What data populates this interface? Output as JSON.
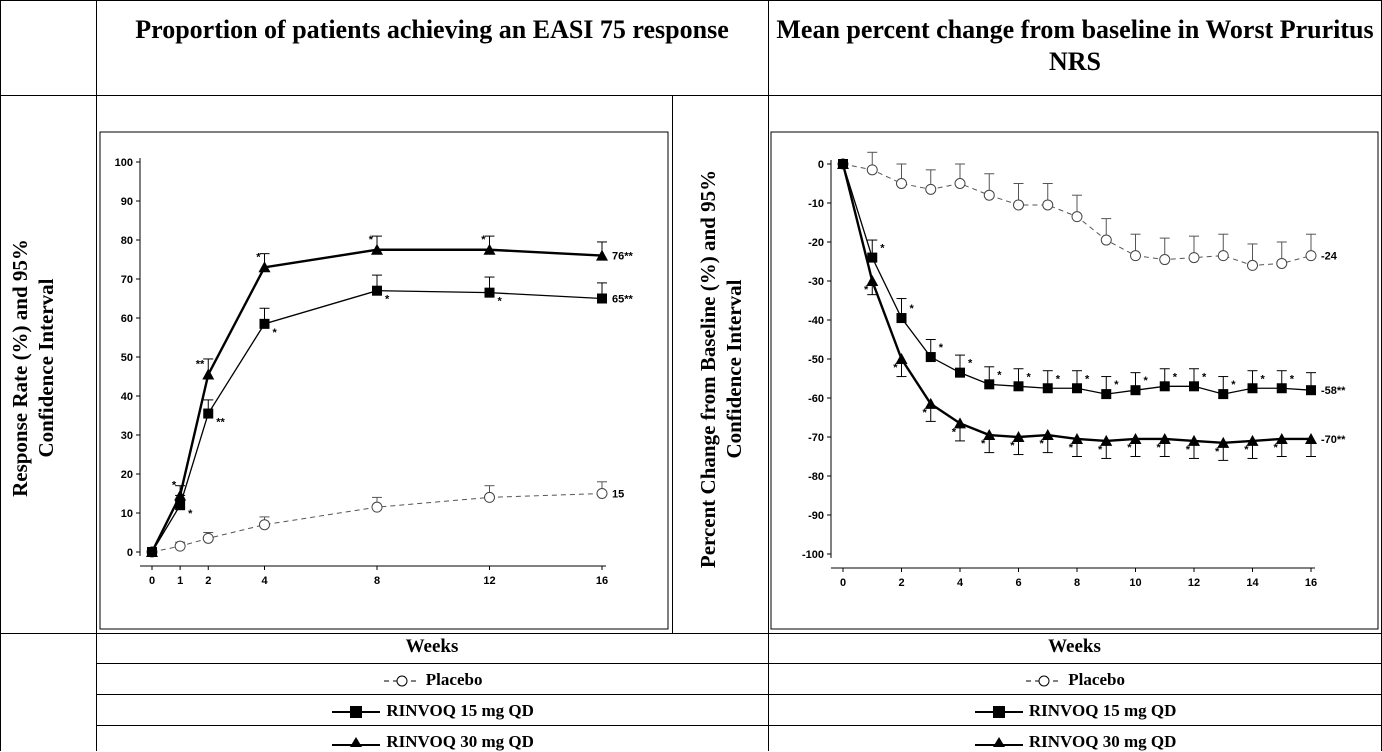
{
  "headers": {
    "left": "Proportion of patients achieving an EASI 75 response",
    "right": "Mean percent change from baseline in Worst Pruritus NRS"
  },
  "left_ylabel": "Response Rate (%) and 95% Confidence Interval",
  "right_ylabel": "Percent Change from Baseline (%) and 95% Confidence Interval",
  "footer": {
    "weeks_label": "Weeks",
    "legend_placebo": "Placebo",
    "legend_15mg": "RINVOQ 15 mg QD",
    "legend_30mg": "RINVOQ 30 mg QD"
  },
  "chart_data": [
    {
      "type": "line",
      "title": "Proportion of patients achieving an EASI 75 response",
      "xlabel": "Weeks",
      "ylabel": "Response Rate (%) and 95% Confidence Interval",
      "xlim": [
        0,
        16
      ],
      "ylim": [
        0,
        100
      ],
      "xticks": [
        0,
        1,
        2,
        4,
        8,
        12,
        16
      ],
      "yticks": [
        0,
        10,
        20,
        30,
        40,
        50,
        60,
        70,
        80,
        90,
        100
      ],
      "series": [
        {
          "name": "Placebo",
          "x": [
            0,
            1,
            2,
            4,
            8,
            12,
            16
          ],
          "y": [
            0,
            1.5,
            3.5,
            7,
            11.5,
            14,
            15
          ],
          "err": [
            0,
            1,
            1.5,
            2,
            2.5,
            3,
            3
          ],
          "end_label": "15",
          "marks": [
            "",
            "",
            "",
            "",
            "",
            "",
            ""
          ]
        },
        {
          "name": "RINVOQ 15 mg QD",
          "x": [
            0,
            1,
            2,
            4,
            8,
            12,
            16
          ],
          "y": [
            0,
            12,
            35.5,
            58.5,
            67,
            66.5,
            65
          ],
          "err": [
            0,
            2.5,
            3.5,
            4,
            4,
            4,
            4
          ],
          "end_label": "65**",
          "marks": [
            "",
            "*",
            "**",
            "*",
            "*",
            "*",
            ""
          ]
        },
        {
          "name": "RINVOQ 30 mg QD",
          "x": [
            0,
            1,
            2,
            4,
            8,
            12,
            16
          ],
          "y": [
            0,
            14.5,
            45.5,
            73,
            77.5,
            77.5,
            76
          ],
          "err": [
            0,
            2.5,
            4,
            3.5,
            3.5,
            3.5,
            3.5
          ],
          "end_label": "76**",
          "marks": [
            "",
            "*",
            "**",
            "*",
            "*",
            "*",
            ""
          ]
        }
      ]
    },
    {
      "type": "line",
      "title": "Mean percent change from baseline in Worst Pruritus NRS",
      "xlabel": "Weeks",
      "ylabel": "Percent Change from Baseline (%) and 95% Confidence Interval",
      "xlim": [
        0,
        16
      ],
      "ylim": [
        -100,
        0
      ],
      "xticks": [
        0,
        2,
        4,
        6,
        8,
        10,
        12,
        14,
        16
      ],
      "yticks": [
        0,
        -10,
        -20,
        -30,
        -40,
        -50,
        -60,
        -70,
        -80,
        -90,
        -100
      ],
      "series": [
        {
          "name": "Placebo",
          "x": [
            0,
            1,
            2,
            3,
            4,
            5,
            6,
            7,
            8,
            9,
            10,
            11,
            12,
            13,
            14,
            15,
            16
          ],
          "y": [
            0,
            -1.5,
            -5,
            -6.5,
            -5,
            -8,
            -10.5,
            -10.5,
            -13.5,
            -19.5,
            -23.5,
            -24.5,
            -24,
            -23.5,
            -26,
            -25.5,
            -23.5
          ],
          "err": [
            0,
            4.5,
            5,
            5,
            5,
            5.5,
            5.5,
            5.5,
            5.5,
            5.5,
            5.5,
            5.5,
            5.5,
            5.5,
            5.5,
            5.5,
            5.5
          ],
          "end_label": "-24",
          "marks": [
            "",
            "",
            "",
            "",
            "",
            "",
            "",
            "",
            "",
            "",
            "",
            "",
            "",
            "",
            "",
            "",
            ""
          ]
        },
        {
          "name": "RINVOQ 15 mg QD",
          "x": [
            0,
            1,
            2,
            3,
            4,
            5,
            6,
            7,
            8,
            9,
            10,
            11,
            12,
            13,
            14,
            15,
            16
          ],
          "y": [
            0,
            -24,
            -39.5,
            -49.5,
            -53.5,
            -56.5,
            -57,
            -57.5,
            -57.5,
            -59,
            -58,
            -57,
            -57,
            -59,
            -57.5,
            -57.5,
            -58
          ],
          "err": [
            0,
            4.5,
            5,
            4.5,
            4.5,
            4.5,
            4.5,
            4.5,
            4.5,
            4.5,
            4.5,
            4.5,
            4.5,
            4.5,
            4.5,
            4.5,
            4.5
          ],
          "end_label": "-58**",
          "marks": [
            "",
            "*",
            "*",
            "*",
            "*",
            "*",
            "*",
            "*",
            "*",
            "*",
            "*",
            "*",
            "*",
            "*",
            "*",
            "*",
            ""
          ]
        },
        {
          "name": "RINVOQ 30 mg QD",
          "x": [
            0,
            1,
            2,
            3,
            4,
            5,
            6,
            7,
            8,
            9,
            10,
            11,
            12,
            13,
            14,
            15,
            16
          ],
          "y": [
            0,
            -30,
            -50,
            -61.5,
            -66.5,
            -69.5,
            -70,
            -69.5,
            -70.5,
            -71,
            -70.5,
            -70.5,
            -71,
            -71.5,
            -71,
            -70.5,
            -70.5
          ],
          "err": [
            0,
            3.5,
            4.5,
            4.5,
            4.5,
            4.5,
            4.5,
            4.5,
            4.5,
            4.5,
            4.5,
            4.5,
            4.5,
            4.5,
            4.5,
            4.5,
            4.5
          ],
          "end_label": "-70**",
          "marks": [
            "",
            "*",
            "*",
            "*",
            "*",
            "*",
            "*",
            "*",
            "*",
            "*",
            "*",
            "*",
            "*",
            "*",
            "*",
            "*",
            ""
          ]
        }
      ]
    }
  ]
}
